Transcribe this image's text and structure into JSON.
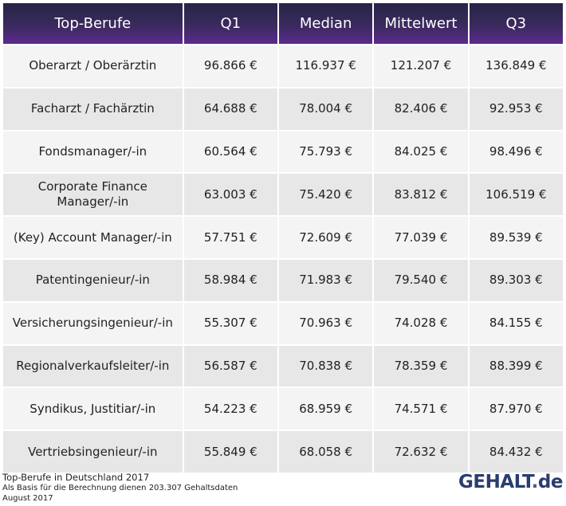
{
  "table": {
    "headers": [
      "Top-Berufe",
      "Q1",
      "Median",
      "Mittelwert",
      "Q3"
    ],
    "rows": [
      {
        "beruf": "Oberarzt / Oberärztin",
        "q1": "96.866 €",
        "median": "116.937 €",
        "mittelwert": "121.207 €",
        "q3": "136.849 €"
      },
      {
        "beruf": "Facharzt / Fachärztin",
        "q1": "64.688 €",
        "median": "78.004 €",
        "mittelwert": "82.406 €",
        "q3": "92.953 €"
      },
      {
        "beruf": "Fondsmanager/-in",
        "q1": "60.564 €",
        "median": "75.793 €",
        "mittelwert": "84.025 €",
        "q3": "98.496 €"
      },
      {
        "beruf": "Corporate Finance Manager/-in",
        "q1": "63.003 €",
        "median": "75.420 €",
        "mittelwert": "83.812 €",
        "q3": "106.519 €"
      },
      {
        "beruf": "(Key) Account Manager/-in",
        "q1": "57.751 €",
        "median": "72.609 €",
        "mittelwert": "77.039 €",
        "q3": "89.539 €"
      },
      {
        "beruf": "Patentingenieur/-in",
        "q1": "58.984 €",
        "median": "71.983 €",
        "mittelwert": "79.540 €",
        "q3": "89.303 €"
      },
      {
        "beruf": "Versicherungsingenieur/-in",
        "q1": "55.307 €",
        "median": "70.963 €",
        "mittelwert": "74.028 €",
        "q3": "84.155 €"
      },
      {
        "beruf": "Regionalverkaufsleiter/-in",
        "q1": "56.587 €",
        "median": "70.838 €",
        "mittelwert": "78.359 €",
        "q3": "88.399 €"
      },
      {
        "beruf": "Syndikus, Justitiar/-in",
        "q1": "54.223 €",
        "median": "68.959 €",
        "mittelwert": "74.571 €",
        "q3": "87.970 €"
      },
      {
        "beruf": "Vertriebsingenieur/-in",
        "q1": "55.849 €",
        "median": "68.058 €",
        "mittelwert": "72.632 €",
        "q3": "84.432 €"
      }
    ]
  },
  "footer": {
    "title": "Top-Berufe in Deutschland 2017",
    "basis": "Als Basis für die Berechnung dienen 203.307 Gehaltsdaten",
    "date": "August 2017"
  },
  "logo": {
    "part1": "GEHALT",
    "part2": ".",
    "part3": "de"
  },
  "colors": {
    "header_top": "#252546",
    "header_bottom": "#5b2a8c",
    "row_light": "#f4f4f4",
    "row_dark": "#e7e7e7",
    "logo": "#2a3d6e"
  }
}
